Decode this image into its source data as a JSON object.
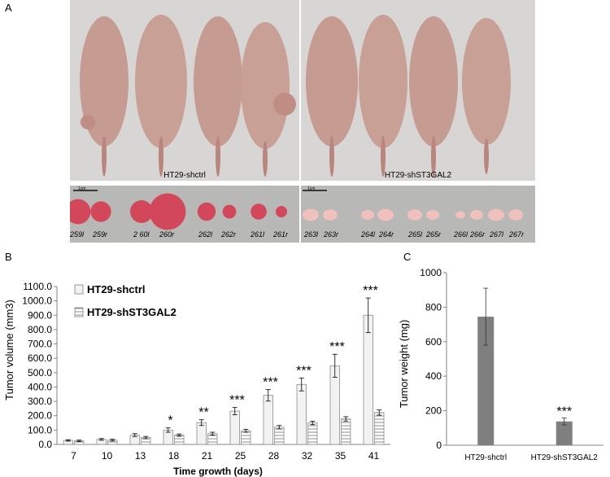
{
  "panel_labels": {
    "a": "A",
    "b": "B",
    "c": "C"
  },
  "photo": {
    "left_caption": "HT29-shctrl",
    "right_caption": "HT29-shST3GAL2",
    "scale_label_left": "1cm",
    "scale_label_right": "1cm",
    "tumor_labels_left": [
      "259l",
      "259r",
      "2 60l",
      "260r",
      "262l",
      "262r",
      "261l",
      "261r"
    ],
    "tumor_labels_right": [
      "263l",
      "263r",
      "264l",
      "264r",
      "265l",
      "265r",
      "266l",
      "266r",
      "267l",
      "267r"
    ],
    "colors": {
      "background": "#d9d9d9",
      "skin": "#c9a096",
      "tumor_ctrl": "#d2485a",
      "tumor_kd": "#f0c0bc"
    }
  },
  "chart_data": [
    {
      "type": "bar",
      "title": "",
      "xlabel": "Time growth (days)",
      "ylabel": "Tumor volume (mm3)",
      "ylim": [
        0,
        1100
      ],
      "yticks": [
        "0.0",
        "100.0",
        "200.0",
        "300.0",
        "400.0",
        "500.0",
        "600.0",
        "700.0",
        "800.0",
        "900.0",
        "1000.0",
        "1100.0"
      ],
      "categories": [
        "7",
        "10",
        "13",
        "18",
        "21",
        "25",
        "28",
        "32",
        "35",
        "41"
      ],
      "legend_position": "top-left",
      "series": [
        {
          "name": "HT29-shctrl",
          "fill": "light-gray",
          "values": [
            28,
            35,
            65,
            100,
            152,
            232,
            342,
            418,
            548,
            900
          ],
          "errors": [
            5,
            6,
            10,
            15,
            20,
            25,
            40,
            45,
            80,
            120
          ]
        },
        {
          "name": "HT29-shST3GAL2",
          "fill": "horizontal-stripes",
          "values": [
            25,
            30,
            48,
            65,
            75,
            95,
            120,
            150,
            178,
            222
          ],
          "errors": [
            5,
            6,
            8,
            8,
            10,
            10,
            12,
            12,
            15,
            18
          ]
        }
      ],
      "significance": [
        "",
        "",
        "",
        "*",
        "**",
        "***",
        "***",
        "***",
        "***",
        "***"
      ]
    },
    {
      "type": "bar",
      "title": "",
      "xlabel": "",
      "ylabel": "Tumor weight (mg)",
      "ylim": [
        0,
        1000
      ],
      "yticks": [
        "0",
        "200",
        "400",
        "600",
        "800",
        "1000"
      ],
      "categories": [
        "HT29-shctrl",
        "HT29-shST3GAL2"
      ],
      "values": [
        745,
        138
      ],
      "errors": [
        165,
        20
      ],
      "significance": [
        "",
        "***"
      ],
      "bar_color": "#7f7f7f"
    }
  ]
}
